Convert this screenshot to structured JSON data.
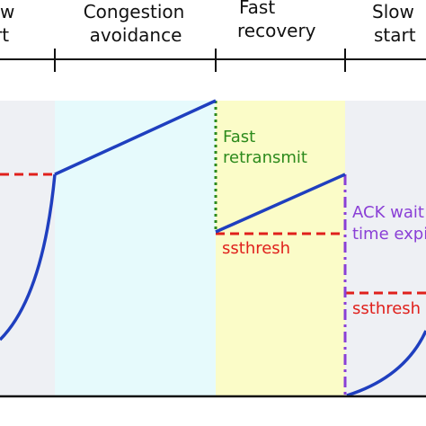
{
  "phases": [
    {
      "name": "slow-start-1",
      "label_lines": [
        "w",
        "rt"
      ]
    },
    {
      "name": "congestion-avoidance",
      "label_lines": [
        "Congestion",
        "avoidance"
      ]
    },
    {
      "name": "fast-recovery",
      "label_lines": [
        "Fast",
        "recovery"
      ]
    },
    {
      "name": "slow-start-2",
      "label_lines": [
        "Slow",
        "start"
      ]
    }
  ],
  "annotations": {
    "fast_retransmit": [
      "Fast",
      "retransmit"
    ],
    "ssthresh_1": "ssthresh",
    "ack_wait": [
      "ACK wait",
      "time expi"
    ],
    "ssthresh_2": "ssthresh"
  },
  "colors": {
    "curve": "#1f3fbf",
    "threshold": "#e0201c",
    "fast_retransmit": "#2c8a1c",
    "ack_wait": "#8a3fd6",
    "bg_slow_start": "#eef0f4",
    "bg_congestion": "#e6fafc",
    "bg_fast_recovery": "#fbfcc8"
  }
}
